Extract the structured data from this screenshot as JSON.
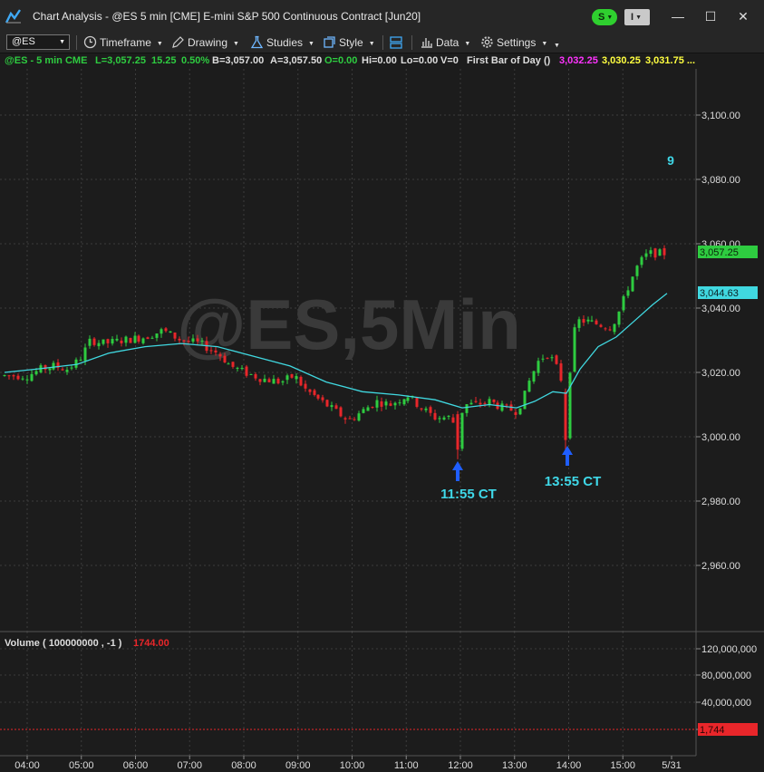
{
  "window": {
    "title": "Chart Analysis - @ES 5 min [CME] E-mini S&P 500 Continuous Contract [Jun20]",
    "status_s": "S",
    "status_i": "I",
    "minimize": "—",
    "maximize": "☐",
    "close": "✕"
  },
  "toolbar": {
    "symbol": "@ES",
    "timeframe": "Timeframe",
    "drawing": "Drawing",
    "studies": "Studies",
    "style": "Style",
    "data": "Data",
    "settings": "Settings"
  },
  "info": {
    "symbol": "@ES - 5 min  CME",
    "last": "L=3,057.25",
    "change": "15.25",
    "pct": "0.50%",
    "bid": "B=3,057.00",
    "ask": "A=3,057.50",
    "open": "O=0.00",
    "hi": "Hi=0.00",
    "lo": "Lo=0.00",
    "vol": "V=0",
    "study": "First Bar of Day ()",
    "study_v1": "3,032.25",
    "study_v2": "3,030.25",
    "study_v3": "3,031.75 ..."
  },
  "colors": {
    "up": "#2ecc40",
    "down": "#e8262a",
    "ma": "#40d8e0",
    "study_v1": "#ff33ff",
    "study_v2": "#ffff40",
    "study_v3": "#ffff40",
    "arrow": "#1f5eff"
  },
  "price_axis": {
    "ticks": [
      "3,100.00",
      "3,080.00",
      "3,060.00",
      "3,040.00",
      "3,020.00",
      "3,000.00",
      "2,980.00",
      "2,960.00"
    ],
    "last_tag": "3,057.25",
    "ma_tag": "3,044.63"
  },
  "volume": {
    "label": "Volume ( 100000000 , -1 )",
    "value": "1744.00",
    "ticks": [
      "120,000,000",
      "80,000,000",
      "40,000,000",
      "0"
    ],
    "tag": "1,744"
  },
  "time_axis": [
    "04:00",
    "05:00",
    "06:00",
    "07:00",
    "08:00",
    "09:00",
    "10:00",
    "11:00",
    "12:00",
    "13:00",
    "14:00",
    "15:00",
    "5/31"
  ],
  "watermark": "@ES,5Min",
  "annotations": {
    "count_label": "9",
    "marker1": "11:55 CT",
    "marker2": "13:55 CT"
  }
}
